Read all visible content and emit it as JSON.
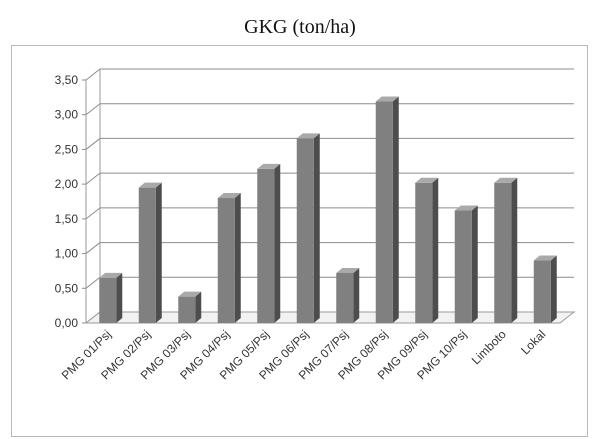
{
  "chart_data": {
    "type": "bar",
    "title": "GKG (ton/ha)",
    "categories": [
      "PMG 01/Psj",
      "PMG 02/Psj",
      "PMG 03/Psj",
      "PMG 04/Psj",
      "PMG 05/Psj",
      "PMG 06/Psj",
      "PMG 07/Psj",
      "PMG 08/Psj",
      "PMG 09/Psj",
      "PMG 10/Psj",
      "Limboto",
      "Lokal"
    ],
    "values": [
      0.65,
      1.95,
      0.38,
      1.8,
      2.22,
      2.66,
      0.72,
      3.19,
      2.02,
      1.62,
      2.02,
      0.9
    ],
    "ylim": [
      0,
      3.5
    ],
    "yticks": [
      "0,00",
      "0,50",
      "1,00",
      "1,50",
      "2,00",
      "2,50",
      "3,00",
      "3,50"
    ],
    "grid": true,
    "bar_color": "#808080",
    "xlabel": "",
    "ylabel": ""
  }
}
